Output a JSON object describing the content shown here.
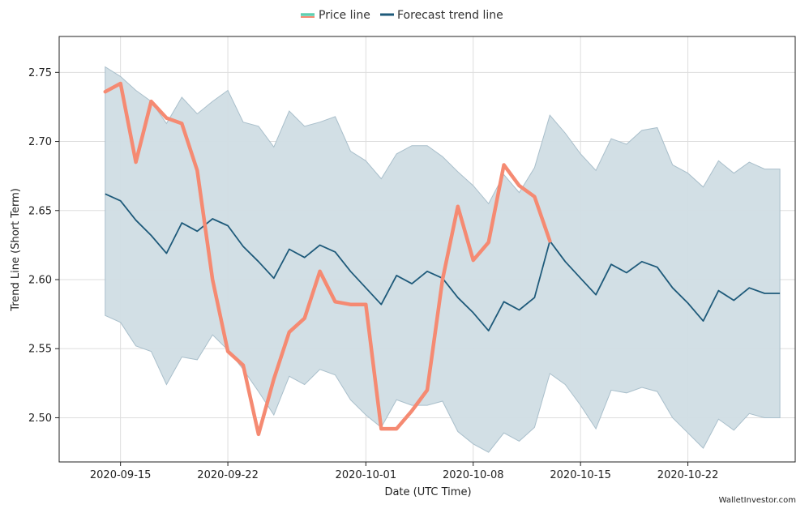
{
  "chart_data": {
    "type": "line",
    "xlabel": "Date (UTC Time)",
    "ylabel": "Trend Line (Short Term)",
    "x_ticks": [
      "2020-09-15",
      "2020-09-22",
      "2020-10-01",
      "2020-10-08",
      "2020-10-15",
      "2020-10-22"
    ],
    "y_ticks": [
      2.5,
      2.55,
      2.6,
      2.65,
      2.7,
      2.75
    ],
    "ylim": [
      2.468,
      2.776
    ],
    "xlim": [
      "2020-09-11",
      "2020-10-29"
    ],
    "grid": true,
    "legend_position": "top-center",
    "credit": "WalletInvestor.com",
    "colors": {
      "price": "#f58a72",
      "price_legend": "#5fcfb0",
      "forecast": "#1e5a7a",
      "band_fill": "#d0dde4",
      "band_stroke": "#a9bfcb",
      "grid": "#dddddd"
    },
    "series": [
      {
        "name": "Price line",
        "x": [
          "2020-09-14",
          "2020-09-15",
          "2020-09-16",
          "2020-09-17",
          "2020-09-18",
          "2020-09-19",
          "2020-09-20",
          "2020-09-21",
          "2020-09-22",
          "2020-09-23",
          "2020-09-24",
          "2020-09-25",
          "2020-09-26",
          "2020-09-27",
          "2020-09-28",
          "2020-09-29",
          "2020-09-30",
          "2020-10-01",
          "2020-10-02",
          "2020-10-03",
          "2020-10-04",
          "2020-10-05",
          "2020-10-06",
          "2020-10-07",
          "2020-10-08",
          "2020-10-09",
          "2020-10-10",
          "2020-10-11",
          "2020-10-12",
          "2020-10-13"
        ],
        "values": [
          2.736,
          2.742,
          2.685,
          2.729,
          2.717,
          2.713,
          2.679,
          2.6,
          2.548,
          2.538,
          2.488,
          2.528,
          2.562,
          2.572,
          2.606,
          2.584,
          2.582,
          2.582,
          2.492,
          2.492,
          2.505,
          2.52,
          2.6,
          2.653,
          2.614,
          2.627,
          2.683,
          2.668,
          2.66,
          2.628
        ]
      },
      {
        "name": "Forecast trend line",
        "x": [
          "2020-09-14",
          "2020-09-15",
          "2020-09-16",
          "2020-09-17",
          "2020-09-18",
          "2020-09-19",
          "2020-09-20",
          "2020-09-21",
          "2020-09-22",
          "2020-09-23",
          "2020-09-24",
          "2020-09-25",
          "2020-09-26",
          "2020-09-27",
          "2020-09-28",
          "2020-09-29",
          "2020-09-30",
          "2020-10-01",
          "2020-10-02",
          "2020-10-03",
          "2020-10-04",
          "2020-10-05",
          "2020-10-06",
          "2020-10-07",
          "2020-10-08",
          "2020-10-09",
          "2020-10-10",
          "2020-10-11",
          "2020-10-12",
          "2020-10-13",
          "2020-10-14",
          "2020-10-15",
          "2020-10-16",
          "2020-10-17",
          "2020-10-18",
          "2020-10-19",
          "2020-10-20",
          "2020-10-21",
          "2020-10-22",
          "2020-10-23",
          "2020-10-24",
          "2020-10-25",
          "2020-10-26",
          "2020-10-27",
          "2020-10-28"
        ],
        "values": [
          2.662,
          2.657,
          2.643,
          2.632,
          2.619,
          2.641,
          2.635,
          2.644,
          2.639,
          2.624,
          2.613,
          2.601,
          2.622,
          2.616,
          2.625,
          2.62,
          2.606,
          2.594,
          2.582,
          2.603,
          2.597,
          2.606,
          2.601,
          2.587,
          2.576,
          2.563,
          2.584,
          2.578,
          2.587,
          2.628,
          2.613,
          2.601,
          2.589,
          2.611,
          2.605,
          2.613,
          2.609,
          2.594,
          2.583,
          2.57,
          2.592,
          2.585,
          2.594,
          2.59,
          2.59
        ]
      },
      {
        "name": "Forecast range",
        "x": [
          "2020-09-14",
          "2020-09-15",
          "2020-09-16",
          "2020-09-17",
          "2020-09-18",
          "2020-09-19",
          "2020-09-20",
          "2020-09-21",
          "2020-09-22",
          "2020-09-23",
          "2020-09-24",
          "2020-09-25",
          "2020-09-26",
          "2020-09-27",
          "2020-09-28",
          "2020-09-29",
          "2020-09-30",
          "2020-10-01",
          "2020-10-02",
          "2020-10-03",
          "2020-10-04",
          "2020-10-05",
          "2020-10-06",
          "2020-10-07",
          "2020-10-08",
          "2020-10-09",
          "2020-10-10",
          "2020-10-11",
          "2020-10-12",
          "2020-10-13",
          "2020-10-14",
          "2020-10-15",
          "2020-10-16",
          "2020-10-17",
          "2020-10-18",
          "2020-10-19",
          "2020-10-20",
          "2020-10-21",
          "2020-10-22",
          "2020-10-23",
          "2020-10-24",
          "2020-10-25",
          "2020-10-26",
          "2020-10-27",
          "2020-10-28"
        ],
        "upper": [
          2.754,
          2.747,
          2.737,
          2.729,
          2.713,
          2.732,
          2.72,
          2.729,
          2.737,
          2.714,
          2.711,
          2.696,
          2.722,
          2.711,
          2.714,
          2.718,
          2.693,
          2.686,
          2.673,
          2.691,
          2.697,
          2.697,
          2.689,
          2.678,
          2.668,
          2.655,
          2.676,
          2.663,
          2.681,
          2.719,
          2.706,
          2.691,
          2.679,
          2.702,
          2.698,
          2.708,
          2.71,
          2.683,
          2.677,
          2.667,
          2.686,
          2.677,
          2.685,
          2.68,
          2.68
        ],
        "lower": [
          2.574,
          2.569,
          2.552,
          2.548,
          2.524,
          2.544,
          2.542,
          2.56,
          2.549,
          2.535,
          2.519,
          2.502,
          2.53,
          2.524,
          2.535,
          2.531,
          2.513,
          2.502,
          2.493,
          2.513,
          2.509,
          2.509,
          2.512,
          2.49,
          2.481,
          2.475,
          2.489,
          2.483,
          2.493,
          2.532,
          2.524,
          2.509,
          2.492,
          2.52,
          2.518,
          2.522,
          2.519,
          2.5,
          2.489,
          2.478,
          2.499,
          2.491,
          2.503,
          2.5,
          2.5
        ]
      }
    ]
  }
}
